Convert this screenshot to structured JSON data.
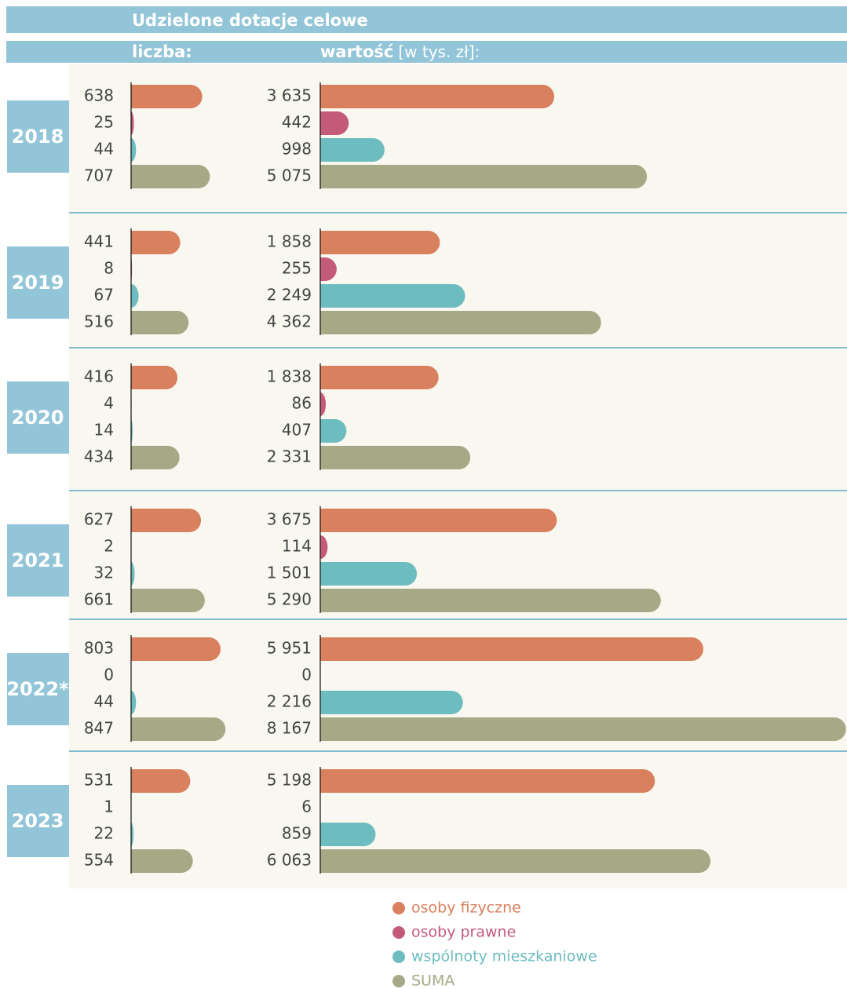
{
  "chart_data": {
    "type": "paired-bar",
    "title": "Udzielone dotacje celowe",
    "count_heading": "liczba:",
    "value_heading": "wartość",
    "value_unit": "[w tys. zł]:",
    "groups": [
      "2018",
      "2019",
      "2020",
      "2021",
      "2022*",
      "2023"
    ],
    "series": [
      {
        "name": "osoby fizyczne",
        "color": "#d9805e",
        "counts": [
          638,
          441,
          416,
          627,
          803,
          531
        ],
        "values": [
          3635,
          1858,
          1838,
          3675,
          5951,
          5198
        ],
        "value_labels": [
          "3 635",
          "1 858",
          "1 838",
          "3 675",
          "5 951",
          "5 198"
        ]
      },
      {
        "name": "osoby prawne",
        "color": "#c45a7a",
        "counts": [
          25,
          8,
          4,
          2,
          0,
          1
        ],
        "values": [
          442,
          255,
          86,
          114,
          0,
          6
        ],
        "value_labels": [
          "442",
          "255",
          "86",
          "114",
          "0",
          "6"
        ]
      },
      {
        "name": "wspólnoty mieszkaniowe",
        "color": "#6dbcbf",
        "counts": [
          44,
          67,
          14,
          32,
          44,
          22
        ],
        "values": [
          998,
          2249,
          407,
          1501,
          2216,
          859
        ],
        "value_labels": [
          "998",
          "2 249",
          "407",
          "1 501",
          "2 216",
          "859"
        ]
      },
      {
        "name": "SUMA",
        "color": "#a5a985",
        "counts": [
          707,
          516,
          434,
          661,
          847,
          554
        ],
        "values": [
          5075,
          4362,
          2331,
          5290,
          8167,
          6063
        ],
        "value_labels": [
          "5 075",
          "4 362",
          "2 331",
          "5 290",
          "8 167",
          "6 063"
        ]
      }
    ]
  }
}
